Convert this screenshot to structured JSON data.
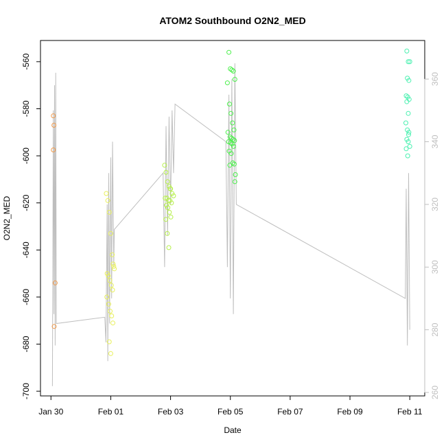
{
  "chart_data": {
    "type": "scatter",
    "title": "ATOM2 Southbound O2N2_MED",
    "xlabel": "Date",
    "ylabel": "O2N2_MED",
    "x_tick_labels": [
      "Jan 30",
      "Feb 01",
      "Feb 03",
      "Feb 05",
      "Feb 07",
      "Feb 09",
      "Feb 11"
    ],
    "x_tick_values": [
      0,
      2,
      4,
      6,
      8,
      10,
      12
    ],
    "xlim": [
      -0.35,
      12.5
    ],
    "y_ticks": [
      -700,
      -680,
      -660,
      -640,
      -620,
      -600,
      -580,
      -560
    ],
    "ylim": [
      -702,
      -551
    ],
    "y2_ticks": [
      260,
      280,
      300,
      320,
      340,
      360
    ],
    "y2lim": [
      258.9,
      372.3
    ],
    "grid": false,
    "colors": {
      "axis": "#000000",
      "secondary_axis": "#bebebe",
      "trace": "#bebebe"
    },
    "series": [
      {
        "color": "#f29a4a",
        "x": [
          0.08,
          0.1,
          0.08,
          0.14,
          0.11
        ],
        "y": [
          -583,
          -587,
          -597.5,
          -654,
          -672.5
        ]
      },
      {
        "color": "#e8f05a",
        "x": [
          1.85,
          1.9,
          1.95,
          2.0,
          2.05,
          2.08,
          2.1,
          2.12,
          1.88,
          1.92,
          1.97,
          2.02,
          2.06,
          1.87,
          1.93,
          1.98,
          2.03,
          2.07,
          1.95,
          2.0
        ],
        "y": [
          -616,
          -619,
          -624,
          -633,
          -642,
          -646,
          -647,
          -648,
          -650,
          -651,
          -653,
          -655,
          -657,
          -660,
          -663,
          -666,
          -668,
          -671,
          -679,
          -684
        ]
      },
      {
        "color": "#b6f04a",
        "x": [
          3.8,
          3.85,
          3.9,
          3.95,
          4.0,
          4.05,
          4.1,
          3.82,
          3.88,
          3.93,
          3.98,
          4.03,
          3.86,
          3.91,
          3.96,
          4.01,
          3.84,
          3.89,
          3.94,
          3.99
        ],
        "y": [
          -604,
          -607,
          -611,
          -613,
          -614,
          -616,
          -617,
          -618,
          -618,
          -619,
          -619,
          -620,
          -621,
          -622,
          -624,
          -626,
          -627,
          -633,
          -639,
          -614
        ]
      },
      {
        "color": "#4af04a",
        "x": [
          5.95,
          6.0,
          6.05,
          6.1,
          6.15,
          5.9,
          5.97,
          6.02,
          6.07,
          6.12,
          5.92,
          5.99,
          6.04,
          6.09,
          6.14,
          5.94,
          6.01,
          6.06,
          6.11,
          5.96,
          6.03,
          6.08,
          6.13,
          5.98,
          6.17,
          6.15
        ],
        "y": [
          -556,
          -563,
          -563.5,
          -564,
          -567.5,
          -569,
          -578,
          -582,
          -586,
          -589,
          -590,
          -592,
          -592.5,
          -593,
          -593.5,
          -594,
          -594.5,
          -595,
          -596,
          -598,
          -599,
          -603,
          -603.5,
          -604,
          -608,
          -611
        ]
      },
      {
        "color": "#4af0b0",
        "x": [
          11.9,
          11.95,
          12.0,
          11.92,
          11.97,
          11.88,
          11.93,
          11.98,
          11.9,
          11.95,
          11.87,
          11.92,
          11.97,
          11.9,
          11.95,
          11.88,
          11.93,
          11.96,
          12.0
        ],
        "y": [
          -555.5,
          -560,
          -560,
          -567,
          -568,
          -574.5,
          -575,
          -576,
          -577,
          -582,
          -586,
          -589,
          -590,
          -593,
          -594,
          -597,
          -600,
          -591,
          -596
        ]
      }
    ],
    "secondary_trace": {
      "color": "#bebebe",
      "x": [
        0.05,
        0.08,
        0.1,
        0.12,
        0.14,
        0.16,
        0.18,
        1.8,
        1.84,
        1.88,
        1.9,
        1.93,
        1.96,
        2.0,
        2.03,
        2.06,
        2.1,
        2.12,
        3.75,
        3.8,
        3.85,
        3.9,
        3.95,
        4.0,
        4.05,
        4.1,
        4.15,
        5.85,
        5.9,
        5.95,
        6.0,
        6.05,
        6.1,
        6.15,
        6.2,
        11.85,
        11.88,
        11.92,
        11.96,
        12.0
      ],
      "y": [
        262,
        350,
        285,
        358,
        275,
        362,
        282,
        284,
        276,
        320,
        270,
        330,
        282,
        335,
        290,
        340,
        300,
        312,
        330,
        300,
        345,
        310,
        348,
        320,
        350,
        330,
        352,
        340,
        300,
        355,
        290,
        360,
        285,
        365,
        320,
        290,
        325,
        275,
        330,
        280
      ]
    }
  }
}
